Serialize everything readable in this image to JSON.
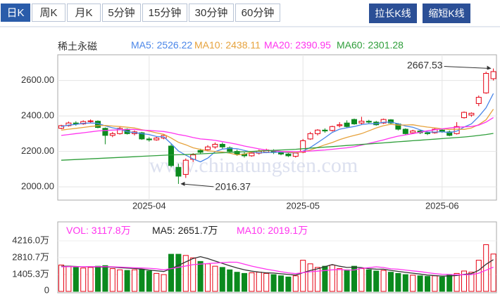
{
  "toolbar": {
    "tabs": [
      "日K",
      "周K",
      "月K",
      "5分钟",
      "15分钟",
      "30分钟",
      "60分钟"
    ],
    "selected": 0,
    "buttons": [
      "拉长K线",
      "缩短K线"
    ]
  },
  "watermark": "www.chinatungsten.com",
  "chart_data": [
    {
      "type": "candlestick",
      "title": "稀土永磁",
      "categories": [
        null,
        null,
        null,
        null,
        null,
        null,
        null,
        null,
        null,
        null,
        null,
        null,
        "2025-04",
        null,
        null,
        null,
        null,
        null,
        null,
        null,
        null,
        null,
        null,
        null,
        null,
        null,
        null,
        null,
        null,
        null,
        null,
        null,
        null,
        "2025-05",
        null,
        null,
        null,
        null,
        null,
        null,
        null,
        null,
        null,
        null,
        null,
        null,
        null,
        null,
        null,
        null,
        null,
        null,
        "2025-06",
        null,
        null,
        null,
        null,
        null,
        null,
        null
      ],
      "open": [
        2330,
        2345,
        2360,
        2355,
        2368,
        2370,
        2330,
        2290,
        2300,
        2325,
        2300,
        2305,
        2270,
        2265,
        2275,
        2230,
        2110,
        2070,
        2155,
        2205,
        2210,
        2225,
        2240,
        2220,
        2200,
        2185,
        2175,
        2190,
        2195,
        2205,
        2195,
        2185,
        2172,
        2195,
        2270,
        2300,
        2320,
        2318,
        2345,
        2360,
        2380,
        2360,
        2370,
        2365,
        2360,
        2378,
        2355,
        2325,
        2305,
        2315,
        2305,
        2305,
        2320,
        2310,
        2300,
        2390,
        2405,
        2470,
        2530,
        2610
      ],
      "close": [
        2345,
        2360,
        2355,
        2368,
        2372,
        2335,
        2290,
        2300,
        2330,
        2300,
        2310,
        2270,
        2265,
        2275,
        2290,
        2120,
        2060,
        2150,
        2180,
        2195,
        2225,
        2240,
        2225,
        2200,
        2185,
        2175,
        2190,
        2200,
        2208,
        2195,
        2185,
        2175,
        2190,
        2260,
        2300,
        2320,
        2315,
        2340,
        2350,
        2340,
        2355,
        2370,
        2365,
        2350,
        2380,
        2360,
        2325,
        2300,
        2315,
        2305,
        2300,
        2325,
        2310,
        2290,
        2340,
        2420,
        2415,
        2505,
        2640,
        2650
      ],
      "low": [
        2325,
        2340,
        2345,
        2350,
        2360,
        2330,
        2240,
        2280,
        2295,
        2295,
        2290,
        2265,
        2255,
        2260,
        2268,
        2110,
        2016.37,
        2050,
        2140,
        2185,
        2200,
        2215,
        2215,
        2190,
        2175,
        2165,
        2170,
        2182,
        2190,
        2185,
        2178,
        2168,
        2165,
        2190,
        2265,
        2290,
        2305,
        2312,
        2335,
        2335,
        2350,
        2350,
        2355,
        2345,
        2355,
        2355,
        2318,
        2295,
        2300,
        2298,
        2292,
        2300,
        2305,
        2285,
        2295,
        2385,
        2395,
        2455,
        2525,
        2600
      ],
      "high": [
        2350,
        2368,
        2370,
        2375,
        2380,
        2375,
        2335,
        2310,
        2340,
        2330,
        2318,
        2310,
        2280,
        2285,
        2295,
        2240,
        2130,
        2160,
        2190,
        2215,
        2235,
        2250,
        2250,
        2228,
        2210,
        2195,
        2198,
        2210,
        2215,
        2212,
        2200,
        2192,
        2195,
        2270,
        2310,
        2325,
        2330,
        2345,
        2365,
        2375,
        2385,
        2395,
        2378,
        2372,
        2385,
        2382,
        2360,
        2330,
        2322,
        2320,
        2312,
        2330,
        2328,
        2318,
        2365,
        2425,
        2420,
        2515,
        2650,
        2667.53
      ],
      "up_color": "#e60012",
      "down_color": "#0b8a1e",
      "series": [
        {
          "name": "MA5",
          "color": "#4a86e8",
          "values": [
            2340,
            2348,
            2352,
            2358,
            2360,
            2358,
            2344,
            2333,
            2325,
            2311,
            2306,
            2300,
            2295,
            2284,
            2282,
            2244,
            2202,
            2179,
            2157,
            2141,
            2162,
            2198,
            2213,
            2217,
            2215,
            2205,
            2196,
            2192,
            2193,
            2194,
            2196,
            2193,
            2191,
            2201,
            2222,
            2249,
            2277,
            2307,
            2325,
            2333,
            2340,
            2351,
            2356,
            2356,
            2364,
            2365,
            2356,
            2343,
            2336,
            2321,
            2309,
            2309,
            2311,
            2306,
            2314,
            2337,
            2355,
            2396,
            2446,
            2526.22
          ]
        },
        {
          "name": "MA10",
          "color": "#e6a23c",
          "values": [
            2320,
            2325,
            2330,
            2335,
            2340,
            2345,
            2346,
            2343,
            2340,
            2336,
            2332,
            2322,
            2314,
            2304,
            2296,
            2275,
            2251,
            2237,
            2220,
            2211,
            2203,
            2200,
            2196,
            2190,
            2180,
            2184,
            2197,
            2203,
            2205,
            2204,
            2200,
            2195,
            2193,
            2197,
            2208,
            2222,
            2237,
            2250,
            2266,
            2279,
            2290,
            2300,
            2316,
            2332,
            2345,
            2353,
            2348,
            2349,
            2350,
            2343,
            2337,
            2333,
            2327,
            2324,
            2325,
            2324,
            2332,
            2351,
            2378,
            2438.11
          ]
        },
        {
          "name": "MA20",
          "color": "#ff33ee",
          "values": [
            2290,
            2295,
            2300,
            2305,
            2310,
            2315,
            2318,
            2320,
            2322,
            2323,
            2324,
            2320,
            2318,
            2315,
            2312,
            2305,
            2295,
            2288,
            2278,
            2270,
            2267,
            2262,
            2255,
            2248,
            2240,
            2230,
            2222,
            2214,
            2207,
            2203,
            2200,
            2199,
            2198,
            2200,
            2202,
            2205,
            2208,
            2212,
            2216,
            2220,
            2226,
            2235,
            2245,
            2255,
            2265,
            2276,
            2286,
            2293,
            2300,
            2308,
            2316,
            2322,
            2327,
            2332,
            2336,
            2338,
            2340,
            2348,
            2365,
            2390.95
          ]
        },
        {
          "name": "MA60",
          "color": "#2e9e3a",
          "values": [
            2150,
            2152,
            2154,
            2156,
            2158,
            2160,
            2162,
            2164,
            2166,
            2168,
            2170,
            2172,
            2174,
            2176,
            2178,
            2180,
            2181,
            2182,
            2184,
            2186,
            2188,
            2190,
            2192,
            2194,
            2196,
            2198,
            2200,
            2202,
            2204,
            2206,
            2208,
            2210,
            2212,
            2215,
            2218,
            2221,
            2224,
            2227,
            2230,
            2233,
            2236,
            2239,
            2242,
            2245,
            2248,
            2251,
            2254,
            2257,
            2260,
            2263,
            2266,
            2269,
            2272,
            2275,
            2278,
            2281,
            2285,
            2290,
            2295,
            2301.28
          ]
        }
      ],
      "ylim": [
        1925,
        2745
      ],
      "yticks": [
        {
          "value": 2000,
          "label": "2000.00"
        },
        {
          "value": 2200,
          "label": "2200.00"
        },
        {
          "value": 2400,
          "label": "2400.00"
        },
        {
          "value": 2600,
          "label": "2600.00"
        }
      ],
      "grid": true
    },
    {
      "type": "bar",
      "unit": "万",
      "values": [
        2200,
        2100,
        2000,
        1950,
        2000,
        2100,
        2150,
        1900,
        1800,
        1750,
        1800,
        1850,
        1700,
        1500,
        1400,
        3100,
        3100,
        3000,
        2800,
        2500,
        2300,
        2100,
        2000,
        1800,
        1600,
        1500,
        1550,
        1600,
        1500,
        1400,
        1300,
        1200,
        1300,
        2600,
        2300,
        2000,
        2100,
        2200,
        1900,
        1800,
        2100,
        1900,
        1800,
        1700,
        1750,
        1600,
        1500,
        1400,
        1350,
        1300,
        1250,
        1300,
        1200,
        1400,
        1500,
        1700,
        1600,
        2600,
        3900,
        3117.8
      ],
      "name": "VOL",
      "color": "#ff33ee",
      "series": [
        {
          "name": "MA5",
          "color": "#333333",
          "values": [
            2100,
            2100,
            2080,
            2050,
            2050,
            2030,
            2040,
            2020,
            1980,
            1940,
            1910,
            1860,
            1780,
            1720,
            1660,
            1890,
            2170,
            2460,
            2740,
            2900,
            2740,
            2540,
            2340,
            2140,
            1960,
            1800,
            1690,
            1610,
            1550,
            1530,
            1470,
            1410,
            1360,
            1560,
            1740,
            1880,
            2060,
            2240,
            2100,
            2000,
            2020,
            1980,
            1900,
            1860,
            1850,
            1750,
            1670,
            1590,
            1520,
            1450,
            1360,
            1320,
            1280,
            1290,
            1330,
            1420,
            1480,
            1760,
            2260,
            2651.7
          ]
        },
        {
          "name": "MA10",
          "color": "#ff33ee",
          "values": [
            2050,
            2060,
            2060,
            2060,
            2060,
            2060,
            2060,
            2050,
            2030,
            2000,
            1970,
            1950,
            1930,
            1880,
            1800,
            1900,
            2010,
            2120,
            2230,
            2280,
            2320,
            2360,
            2400,
            2440,
            2430,
            2270,
            2110,
            1980,
            1850,
            1750,
            1640,
            1550,
            1480,
            1560,
            1640,
            1690,
            1740,
            1800,
            1830,
            1780,
            1790,
            1930,
            1980,
            2050,
            1990,
            1880,
            1850,
            1780,
            1710,
            1650,
            1560,
            1490,
            1430,
            1410,
            1390,
            1390,
            1400,
            1520,
            1770,
            2019.1
          ]
        }
      ],
      "ylim": [
        0,
        5450
      ],
      "yticks": [
        0,
        {
          "value": 1405.3,
          "label": "1405.3万"
        },
        {
          "value": 2810.7,
          "label": "2810.7万"
        },
        {
          "value": 4216.0,
          "label": "4216.0万"
        }
      ]
    }
  ]
}
